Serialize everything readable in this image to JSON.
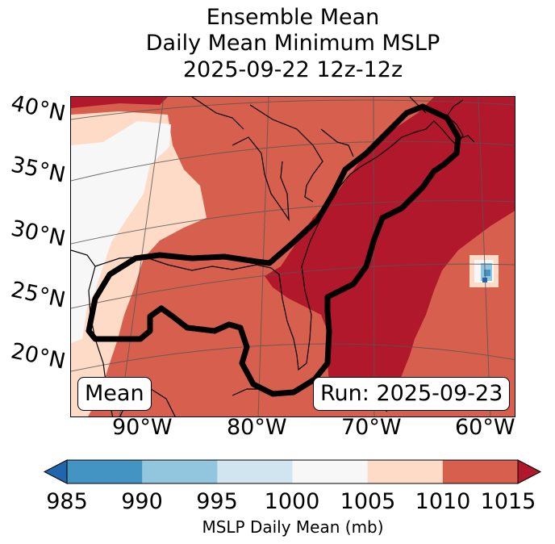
{
  "title": {
    "line1": "Ensemble Mean",
    "line2": "Daily Mean Minimum MSLP",
    "line3": "2025-09-22 12z-12z"
  },
  "map": {
    "lat_labels": [
      "40°N",
      "35°N",
      "30°N",
      "25°N",
      "20°N"
    ],
    "lon_labels": [
      "90°W",
      "80°W",
      "70°W",
      "60°W"
    ],
    "mean_box": "Mean",
    "run_box": "Run: 2025-09-23"
  },
  "colorbar": {
    "ticks": [
      "985",
      "990",
      "995",
      "1000",
      "1005",
      "1010",
      "1015"
    ],
    "label": "MSLP Daily Mean (mb)",
    "bins": [
      {
        "range": "<985",
        "color": "#2166ac"
      },
      {
        "range": "985-990",
        "color": "#4393c3"
      },
      {
        "range": "990-995",
        "color": "#92c5de"
      },
      {
        "range": "995-1000",
        "color": "#d1e5f0"
      },
      {
        "range": "1000-1005",
        "color": "#f7f7f7"
      },
      {
        "range": "1005-1010",
        "color": "#fddbc7"
      },
      {
        "range": "1010-1015",
        "color": "#d6604d"
      },
      {
        "range": ">1015",
        "color": "#b2182b"
      }
    ]
  }
}
